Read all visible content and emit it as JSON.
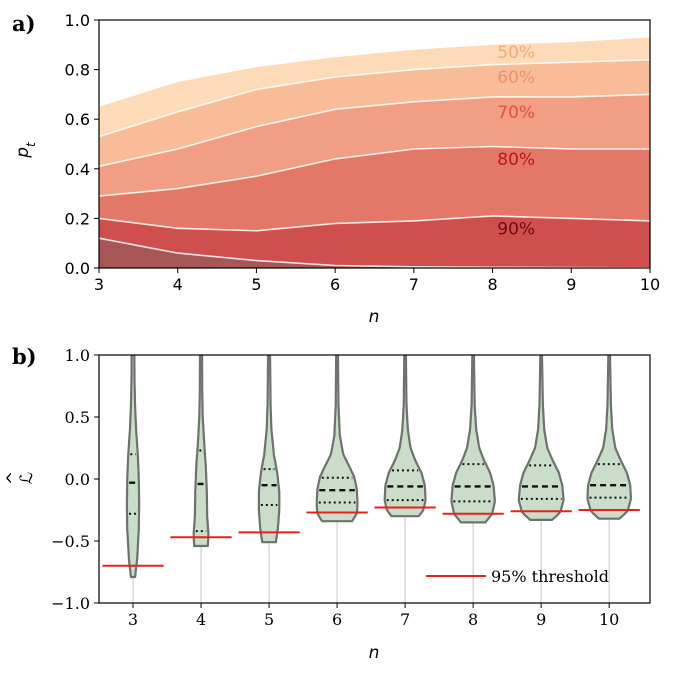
{
  "figure": {
    "panel_a_label": "a)",
    "panel_b_label": "b)"
  },
  "chart_data": [
    {
      "type": "area",
      "panel": "a)",
      "title": "",
      "xlabel": "n",
      "ylabel": "p_t",
      "ylabel_main": "p",
      "ylabel_sub": "t",
      "xlim": [
        3,
        10
      ],
      "ylim": [
        0,
        1.0
      ],
      "x": [
        3,
        4,
        5,
        6,
        7,
        8,
        9,
        10
      ],
      "xticks": [
        "3",
        "4",
        "5",
        "6",
        "7",
        "8",
        "9",
        "10"
      ],
      "yticks": [
        "0.0",
        "0.2",
        "0.4",
        "0.6",
        "0.8",
        "1.0"
      ],
      "series": [
        {
          "name": "50%",
          "values": [
            0.65,
            0.75,
            0.81,
            0.85,
            0.88,
            0.9,
            0.91,
            0.93
          ],
          "fill": "#fddbb8",
          "text_color": "#f5a679"
        },
        {
          "name": "60%",
          "values": [
            0.53,
            0.63,
            0.72,
            0.77,
            0.8,
            0.82,
            0.83,
            0.84
          ],
          "fill": "#f8bd98",
          "text_color": "#f08f63"
        },
        {
          "name": "70%",
          "values": [
            0.41,
            0.48,
            0.57,
            0.64,
            0.67,
            0.69,
            0.69,
            0.7
          ],
          "fill": "#f19e84",
          "text_color": "#e0513c"
        },
        {
          "name": "80%",
          "values": [
            0.29,
            0.32,
            0.37,
            0.44,
            0.48,
            0.49,
            0.48,
            0.48
          ],
          "fill": "#e37868",
          "text_color": "#b8161c"
        },
        {
          "name": "90%",
          "values": [
            0.2,
            0.16,
            0.15,
            0.18,
            0.19,
            0.21,
            0.2,
            0.19
          ],
          "fill": "#cf4f4e",
          "text_color": "#6e0a12"
        },
        {
          "name": "",
          "values": [
            0.12,
            0.06,
            0.03,
            0.01,
            0.005,
            0.003,
            0.002,
            0.001
          ],
          "fill": "#a85555",
          "text_color": ""
        }
      ],
      "band_label_x": 8.3,
      "band_label_y": [
        0.87,
        0.77,
        0.63,
        0.44,
        0.16
      ]
    },
    {
      "type": "violin",
      "panel": "b)",
      "title": "",
      "xlabel": "n",
      "ylabel": "L-hat",
      "ylabel_main": "ℒ",
      "ylabel_accent": "^",
      "xlim": [
        2.5,
        10.6
      ],
      "ylim": [
        -1.0,
        1.0
      ],
      "categories": [
        "3",
        "4",
        "5",
        "6",
        "7",
        "8",
        "9",
        "10"
      ],
      "positions": [
        3,
        4,
        5,
        6,
        7,
        8,
        9,
        10
      ],
      "yticks": [
        "−1.0",
        "−0.5",
        "0.0",
        "0.5",
        "1.0"
      ],
      "yticks_values": [
        -1.0,
        -0.5,
        0.0,
        0.5,
        1.0
      ],
      "violins": [
        {
          "min": -0.79,
          "q1": -0.28,
          "median": -0.03,
          "q3": 0.2,
          "threshold": -0.7,
          "profile": [
            [
              -0.79,
              0.03
            ],
            [
              -0.65,
              0.06
            ],
            [
              -0.4,
              0.085
            ],
            [
              -0.2,
              0.09
            ],
            [
              0.0,
              0.085
            ],
            [
              0.2,
              0.07
            ],
            [
              0.4,
              0.045
            ],
            [
              0.6,
              0.03
            ],
            [
              0.8,
              0.022
            ],
            [
              1.0,
              0.02
            ]
          ]
        },
        {
          "min": -0.54,
          "q1": -0.42,
          "median": -0.04,
          "q3": 0.23,
          "threshold": -0.47,
          "profile": [
            [
              -0.54,
              0.1
            ],
            [
              -0.45,
              0.11
            ],
            [
              -0.3,
              0.09
            ],
            [
              -0.1,
              0.085
            ],
            [
              0.1,
              0.07
            ],
            [
              0.3,
              0.045
            ],
            [
              0.5,
              0.025
            ],
            [
              0.7,
              0.018
            ],
            [
              1.0,
              0.015
            ]
          ]
        },
        {
          "min": -0.51,
          "q1": -0.21,
          "median": -0.05,
          "q3": 0.08,
          "threshold": -0.43,
          "profile": [
            [
              -0.51,
              0.1
            ],
            [
              -0.4,
              0.13
            ],
            [
              -0.25,
              0.15
            ],
            [
              -0.1,
              0.15
            ],
            [
              0.05,
              0.12
            ],
            [
              0.2,
              0.07
            ],
            [
              0.4,
              0.035
            ],
            [
              0.6,
              0.022
            ],
            [
              0.8,
              0.018
            ],
            [
              1.0,
              0.015
            ]
          ]
        },
        {
          "min": -0.34,
          "q1": -0.19,
          "median": -0.09,
          "q3": 0.01,
          "threshold": -0.27,
          "profile": [
            [
              -0.34,
              0.22
            ],
            [
              -0.28,
              0.29
            ],
            [
              -0.2,
              0.3
            ],
            [
              -0.08,
              0.29
            ],
            [
              0.02,
              0.25
            ],
            [
              0.1,
              0.18
            ],
            [
              0.2,
              0.09
            ],
            [
              0.35,
              0.04
            ],
            [
              0.6,
              0.02
            ],
            [
              1.0,
              0.013
            ]
          ]
        },
        {
          "min": -0.3,
          "q1": -0.17,
          "median": -0.06,
          "q3": 0.07,
          "threshold": -0.23,
          "profile": [
            [
              -0.3,
              0.2
            ],
            [
              -0.25,
              0.27
            ],
            [
              -0.17,
              0.3
            ],
            [
              -0.05,
              0.29
            ],
            [
              0.05,
              0.24
            ],
            [
              0.15,
              0.15
            ],
            [
              0.25,
              0.08
            ],
            [
              0.4,
              0.04
            ],
            [
              0.6,
              0.02
            ],
            [
              1.0,
              0.012
            ]
          ]
        },
        {
          "min": -0.35,
          "q1": -0.18,
          "median": -0.06,
          "q3": 0.12,
          "threshold": -0.28,
          "profile": [
            [
              -0.35,
              0.18
            ],
            [
              -0.28,
              0.28
            ],
            [
              -0.18,
              0.32
            ],
            [
              -0.05,
              0.3
            ],
            [
              0.05,
              0.25
            ],
            [
              0.15,
              0.16
            ],
            [
              0.25,
              0.09
            ],
            [
              0.4,
              0.045
            ],
            [
              0.6,
              0.022
            ],
            [
              1.0,
              0.012
            ]
          ]
        },
        {
          "min": -0.33,
          "q1": -0.16,
          "median": -0.06,
          "q3": 0.11,
          "threshold": -0.26,
          "profile": [
            [
              -0.33,
              0.16
            ],
            [
              -0.27,
              0.28
            ],
            [
              -0.17,
              0.33
            ],
            [
              -0.05,
              0.31
            ],
            [
              0.05,
              0.26
            ],
            [
              0.15,
              0.17
            ],
            [
              0.25,
              0.09
            ],
            [
              0.4,
              0.045
            ],
            [
              0.6,
              0.025
            ],
            [
              1.0,
              0.012
            ]
          ]
        },
        {
          "min": -0.32,
          "q1": -0.15,
          "median": -0.05,
          "q3": 0.12,
          "threshold": -0.25,
          "profile": [
            [
              -0.32,
              0.15
            ],
            [
              -0.26,
              0.27
            ],
            [
              -0.16,
              0.32
            ],
            [
              -0.05,
              0.31
            ],
            [
              0.05,
              0.26
            ],
            [
              0.15,
              0.17
            ],
            [
              0.25,
              0.09
            ],
            [
              0.4,
              0.045
            ],
            [
              0.6,
              0.025
            ],
            [
              1.0,
              0.012
            ]
          ]
        }
      ],
      "legend": {
        "label": "95% threshold",
        "color": "#e8211c",
        "position": "lower-right"
      },
      "violin_fill": "#c9ddc9",
      "violin_edge": "#6d726d"
    }
  ]
}
